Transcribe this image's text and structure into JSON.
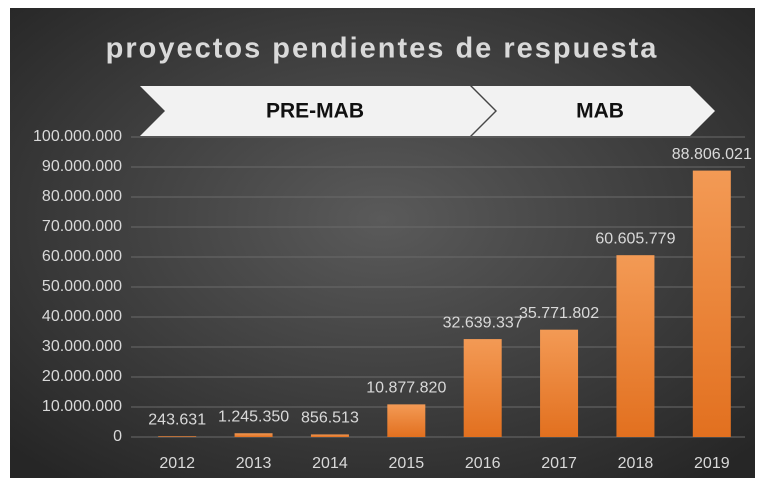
{
  "chart_data": {
    "type": "bar",
    "title": "proyectos pendientes de respuesta",
    "annotations": [
      "PRE-MAB",
      "MAB"
    ],
    "categories": [
      "2012",
      "2013",
      "2014",
      "2015",
      "2016",
      "2017",
      "2018",
      "2019"
    ],
    "values": [
      243631,
      1245350,
      856513,
      10877820,
      32639337,
      35771802,
      60605779,
      88806021
    ],
    "value_labels": [
      "243.631",
      "1.245.350",
      "856.513",
      "10.877.820",
      "32.639.337",
      "35.771.802",
      "60.605.779",
      "88.806.021"
    ],
    "color": "#ed7d31",
    "ylim": [
      0,
      100000000
    ],
    "yticks": [
      0,
      {
        "value": 10000000,
        "label": "10.000.000"
      },
      {
        "value": 20000000,
        "label": "20.000.000"
      },
      {
        "value": 30000000,
        "label": "30.000.000"
      },
      {
        "value": 40000000,
        "label": "40.000.000"
      },
      {
        "value": 50000000,
        "label": "50.000.000"
      },
      {
        "value": 60000000,
        "label": "60.000.000"
      },
      {
        "value": 70000000,
        "label": "70.000.000"
      },
      {
        "value": 80000000,
        "label": "80.000.000"
      },
      {
        "value": 90000000,
        "label": "90.000.000"
      },
      {
        "value": 100000000,
        "label": "100.000.000"
      }
    ],
    "grid": true
  }
}
